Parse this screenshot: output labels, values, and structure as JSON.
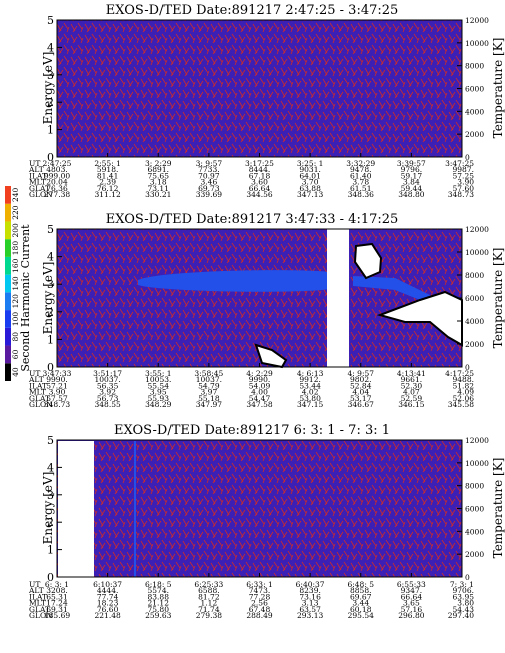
{
  "colors": {
    "background": "#3c1fb4",
    "frame": "#000000",
    "line_noise": "#cc2a2a",
    "band": "#2250e8",
    "low_gap": "#ffffff"
  },
  "colorbar": {
    "label": "Second Harmonic Current",
    "ticks": [
      "40",
      "60",
      "80",
      "100",
      "120",
      "140",
      "160",
      "180",
      "200",
      "220",
      "240"
    ],
    "colors": [
      "#000000",
      "#5a1aa0",
      "#2a1ad8",
      "#1a3cf0",
      "#1a7cf0",
      "#00c8f0",
      "#00d890",
      "#28d028",
      "#c8e000",
      "#f0b000",
      "#f04020"
    ]
  },
  "row_labels": [
    "UT",
    "ALT",
    "ILAT",
    "MLT",
    "GLAT",
    "GLON"
  ],
  "chart_data": [
    {
      "type": "heatmap",
      "title": "EXOS-D/TED   Date:891217  2:47:25 - 3:47:25",
      "ylabel": "Energy [eV]",
      "ylabel_right": "Temperature [K]",
      "ylim": [
        0,
        5
      ],
      "ylim_right": [
        0,
        12000
      ],
      "y_ticks": [
        "0",
        "1",
        "2",
        "3",
        "4",
        "5"
      ],
      "y_ticks_right": [
        "0",
        "2000",
        "4000",
        "6000",
        "8000",
        "10000",
        "12000"
      ],
      "ut": [
        "2:47:25",
        "2:55: 1",
        "3: 2:29",
        "3: 9:57",
        "3:17:25",
        "3:25: 1",
        "3:32:29",
        "3:39:57",
        "3:47:25"
      ],
      "alt": [
        "4803.",
        "5918.",
        "6891.",
        "7733.",
        "8444.",
        "9031.",
        "9478.",
        "9796.",
        "9987."
      ],
      "ilat": [
        "999.00",
        "81.41",
        "75.65",
        "70.97",
        "67.18",
        "64.01",
        "61.40",
        "59.17",
        "57.25"
      ],
      "mlt": [
        "20.04",
        "2.39",
        "3.18",
        "3.46",
        "3.60",
        "3.70",
        "3.78",
        "3.84",
        "3.90"
      ],
      "glat": [
        "76.36",
        "76.12",
        "73.11",
        "69.73",
        "66.64",
        "63.88",
        "61.51",
        "59.44",
        "57.60"
      ],
      "glon": [
        "277.38",
        "311.12",
        "330.21",
        "339.69",
        "344.56",
        "347.13",
        "348.36",
        "348.80",
        "348.73"
      ]
    },
    {
      "type": "heatmap",
      "title": "EXOS-D/TED   Date:891217  3:47:33 - 4:17:25",
      "ylabel": "Energy [eV]",
      "ylabel_right": "Temperature [K]",
      "ylim": [
        0,
        5
      ],
      "ylim_right": [
        0,
        12000
      ],
      "y_ticks": [
        "0",
        "1",
        "2",
        "3",
        "4",
        "5"
      ],
      "y_ticks_right": [
        "0",
        "2000",
        "4000",
        "6000",
        "8000",
        "10000",
        "12000"
      ],
      "ut": [
        "3:47:33",
        "3:51:17",
        "3:55: 1",
        "3:58:45",
        "4: 2:29",
        "4: 6:13",
        "4: 9:57",
        "4:13:41",
        "4:17:25"
      ],
      "alt": [
        "9990.",
        "10037.",
        "10053.",
        "10037.",
        "9990.",
        "9912.",
        "9802.",
        "9661.",
        "9488."
      ],
      "ilat": [
        "57.21",
        "56.35",
        "55.54",
        "54.79",
        "54.09",
        "53.44",
        "52.84",
        "52.30",
        "51.82"
      ],
      "mlt": [
        "3.90",
        "3.92",
        "3.95",
        "3.97",
        "4.00",
        "4.02",
        "4.04",
        "4.07",
        "4.09"
      ],
      "glat": [
        "57.57",
        "56.73",
        "55.93",
        "55.18",
        "54.47",
        "53.80",
        "53.17",
        "52.59",
        "52.06"
      ],
      "glon": [
        "348.73",
        "348.55",
        "348.29",
        "347.97",
        "347.58",
        "347.15",
        "346.67",
        "346.15",
        "345.58"
      ]
    },
    {
      "type": "heatmap",
      "title": "EXOS-D/TED   Date:891217  6: 3: 1 - 7: 3: 1",
      "ylabel": "Energy [eV]",
      "ylabel_right": "Temperature [K]",
      "ylim": [
        0,
        5
      ],
      "ylim_right": [
        0,
        12000
      ],
      "y_ticks": [
        "0",
        "1",
        "2",
        "3",
        "4",
        "5"
      ],
      "y_ticks_right": [
        "0",
        "2000",
        "4000",
        "6000",
        "8000",
        "10000",
        "12000"
      ],
      "ut": [
        "6: 3: 1",
        "6:10:37",
        "6:18: 5",
        "6:25:33",
        "6:33: 1",
        "6:40:37",
        "6:48: 5",
        "6:55:33",
        "7: 3: 1"
      ],
      "alt": [
        "3208.",
        "4444.",
        "5574.",
        "6588.",
        "7473.",
        "8239.",
        "8858.",
        "9347.",
        "9706."
      ],
      "ilat": [
        "65.31",
        "77.74",
        "83.88",
        "81.72",
        "77.28",
        "73.16",
        "69.67",
        "66.64",
        "63.95"
      ],
      "mlt": [
        "17.24",
        "18.23",
        "21.12",
        "1.12",
        "2.56",
        "3.13",
        "3.44",
        "3.65",
        "3.80"
      ],
      "glat": [
        "69.31",
        "76.60",
        "75.80",
        "71.74",
        "67.48",
        "63.57",
        "60.18",
        "57.16",
        "54.43"
      ],
      "glon": [
        "185.69",
        "221.48",
        "259.63",
        "279.38",
        "288.49",
        "293.13",
        "295.54",
        "296.80",
        "297.40"
      ]
    }
  ]
}
